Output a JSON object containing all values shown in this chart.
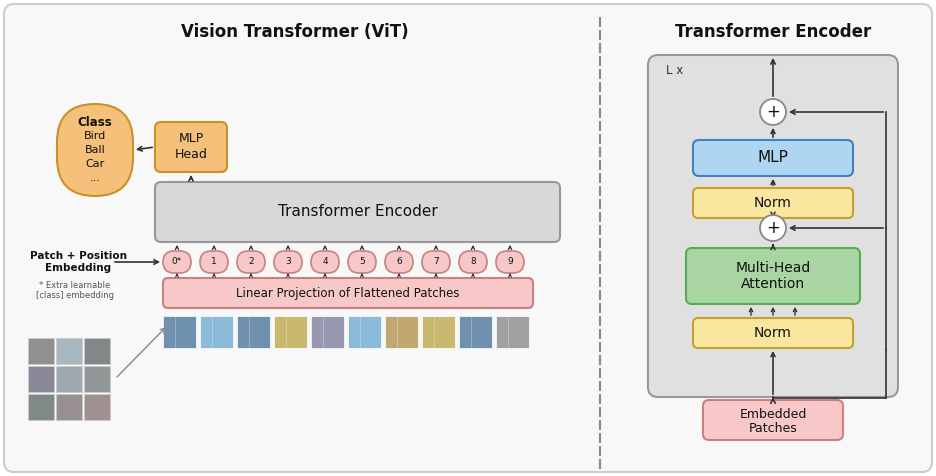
{
  "title_left": "Vision Transformer (ViT)",
  "title_right": "Transformer Encoder",
  "colors": {
    "orange": "#F5C07A",
    "pink": "#F8C8C8",
    "green": "#A8D5A2",
    "blue": "#AED6F1",
    "yellow": "#F9E79F",
    "gray_encoder": "#D8D8D8",
    "gray_outer": "#E0E0E0",
    "white": "#FFFFFF",
    "arrow": "#333333",
    "border": "#999999",
    "orange_border": "#C8922A",
    "pink_border": "#C88080",
    "green_border": "#5AAA55",
    "blue_border": "#4080C0",
    "yellow_border": "#C8A030",
    "bg": "#F7F7F7"
  },
  "patch_tokens": [
    "0*",
    "1",
    "2",
    "3",
    "4",
    "5",
    "6",
    "7",
    "8",
    "9"
  ],
  "img_colors": [
    "#7090B0",
    "#8BBBD8",
    "#7090B0",
    "#C8B870",
    "#9898B0",
    "#8BBBD8",
    "#C0A870",
    "#C8B870",
    "#7090B0",
    "#A0A0A0"
  ]
}
